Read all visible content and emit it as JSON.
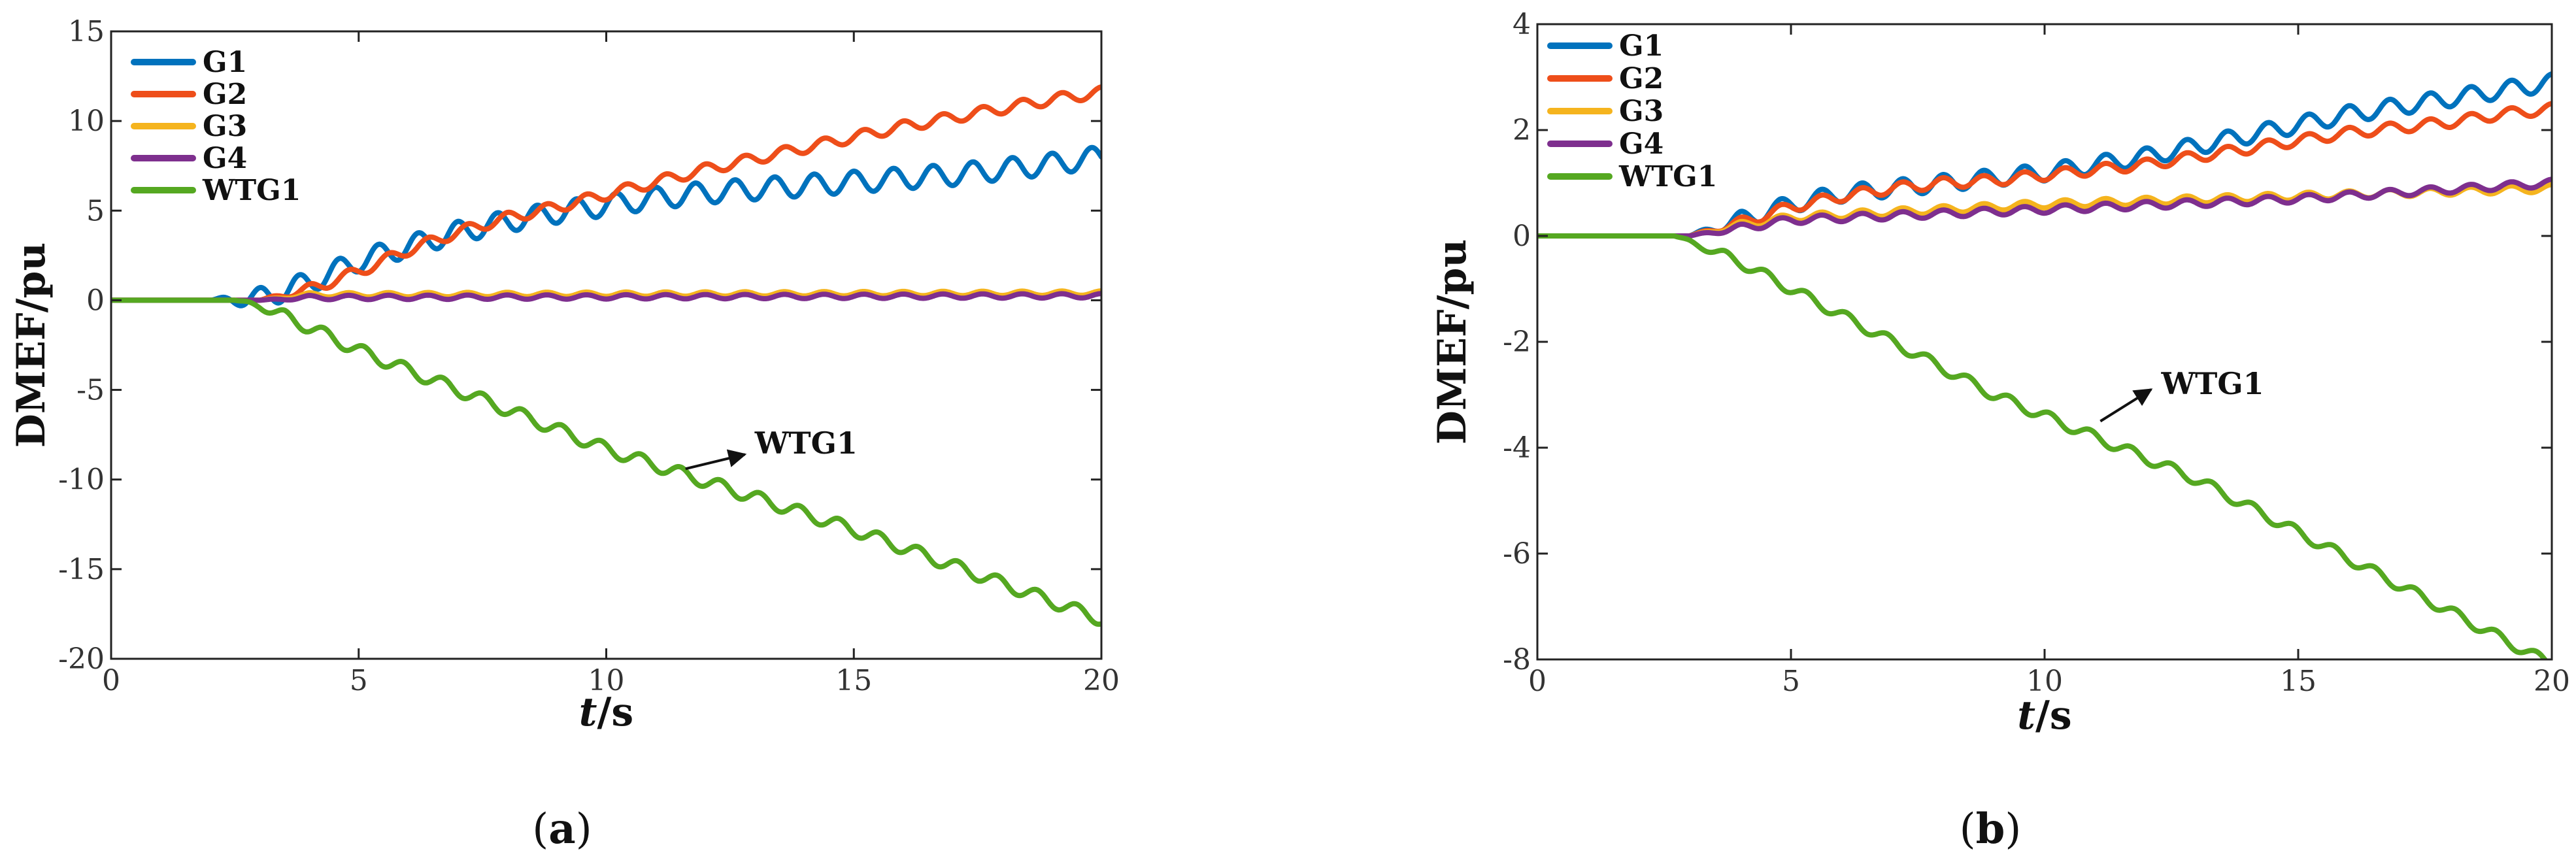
{
  "chart_data": [
    {
      "type": "line",
      "panel_label": "(a)",
      "panel_letter": "a",
      "xlabel": "t/s",
      "xlabel_italic": "t",
      "xlabel_rest": "/s",
      "ylabel": "DMEF/pu",
      "xlim": [
        0,
        20
      ],
      "ylim": [
        -20,
        15
      ],
      "xticks": [
        0,
        5,
        10,
        15,
        20
      ],
      "yticks": [
        -20,
        -15,
        -10,
        -5,
        0,
        5,
        10,
        15
      ],
      "grid": false,
      "legend": "top-left",
      "series": [
        {
          "name": "G1",
          "color": "#0072BD",
          "x": [
            0,
            2,
            3,
            4,
            5,
            6,
            7,
            8,
            9,
            10,
            11,
            12,
            13,
            14,
            15,
            16,
            17,
            18,
            19,
            20
          ],
          "y": [
            0,
            0,
            0.1,
            1.0,
            2.2,
            3.0,
            3.8,
            4.4,
            4.9,
            5.3,
            5.7,
            6.0,
            6.2,
            6.4,
            6.6,
            6.8,
            7.0,
            7.3,
            7.6,
            8.0
          ],
          "osc_amp": 0.6,
          "osc_period": 0.8
        },
        {
          "name": "G2",
          "color": "#EE4E1A",
          "x": [
            0,
            2,
            3,
            4,
            5,
            6,
            7,
            8,
            9,
            10,
            11,
            12,
            13,
            14,
            15,
            16,
            17,
            18,
            19,
            20
          ],
          "y": [
            0,
            0,
            0,
            0.6,
            1.6,
            2.8,
            3.8,
            4.6,
            5.2,
            5.9,
            6.6,
            7.3,
            7.9,
            8.5,
            9.1,
            9.7,
            10.2,
            10.7,
            11.2,
            11.6
          ],
          "osc_amp": 0.3,
          "osc_period": 0.8
        },
        {
          "name": "G3",
          "color": "#F5B41E",
          "x": [
            0,
            3,
            4,
            20
          ],
          "y": [
            0,
            0,
            0.3,
            0.4
          ],
          "osc_amp": 0.12,
          "osc_period": 0.8
        },
        {
          "name": "G4",
          "color": "#7E2F8E",
          "x": [
            0,
            3,
            4,
            20
          ],
          "y": [
            0,
            0,
            0.15,
            0.25
          ],
          "osc_amp": 0.12,
          "osc_period": 0.8
        },
        {
          "name": "WTG1",
          "color": "#55A821",
          "x": [
            0,
            2.5,
            3,
            4,
            5,
            6,
            7,
            8,
            9,
            10,
            11,
            12,
            13,
            14,
            15,
            16,
            17,
            18,
            19,
            20
          ],
          "y": [
            0,
            0,
            -0.3,
            -1.5,
            -2.8,
            -3.9,
            -5.0,
            -6.1,
            -7.2,
            -8.3,
            -9.2,
            -10.1,
            -11.0,
            -11.9,
            -12.8,
            -13.8,
            -14.8,
            -15.8,
            -16.8,
            -17.8
          ],
          "osc_amp": 0.35,
          "osc_period": 0.8
        }
      ],
      "annotations": [
        {
          "text": "WTG1",
          "x": 13,
          "y": -8,
          "arrow_from": [
            11.6,
            -9.4
          ],
          "arrow_to": [
            12.8,
            -8.6
          ]
        }
      ]
    },
    {
      "type": "line",
      "panel_label": "(b)",
      "panel_letter": "b",
      "xlabel": "t/s",
      "xlabel_italic": "t",
      "xlabel_rest": "/s",
      "ylabel": "DMEF/pu",
      "xlim": [
        0,
        20
      ],
      "ylim": [
        -8,
        4
      ],
      "xticks": [
        0,
        5,
        10,
        15,
        20
      ],
      "yticks": [
        -8,
        -6,
        -4,
        -2,
        0,
        2,
        4
      ],
      "grid": false,
      "legend": "top-left",
      "series": [
        {
          "name": "G1",
          "color": "#0072BD",
          "x": [
            0,
            3,
            4,
            5,
            6,
            7,
            8,
            9,
            10,
            11,
            12,
            13,
            14,
            15,
            16,
            17,
            18,
            19,
            20
          ],
          "y": [
            0,
            0,
            0.3,
            0.6,
            0.8,
            0.9,
            1.0,
            1.1,
            1.2,
            1.35,
            1.5,
            1.7,
            1.9,
            2.1,
            2.3,
            2.45,
            2.6,
            2.75,
            2.9
          ],
          "osc_amp": 0.16,
          "osc_period": 0.8
        },
        {
          "name": "G2",
          "color": "#EE4E1A",
          "x": [
            0,
            3,
            4,
            5,
            6,
            7,
            8,
            9,
            10,
            11,
            12,
            13,
            14,
            15,
            16,
            17,
            18,
            19,
            20
          ],
          "y": [
            0,
            0,
            0.25,
            0.55,
            0.75,
            0.9,
            1.0,
            1.05,
            1.15,
            1.25,
            1.35,
            1.5,
            1.65,
            1.8,
            1.95,
            2.05,
            2.15,
            2.3,
            2.4
          ],
          "osc_amp": 0.1,
          "osc_period": 0.8
        },
        {
          "name": "G3",
          "color": "#F5B41E",
          "x": [
            0,
            3,
            4,
            5,
            10,
            15,
            20
          ],
          "y": [
            0,
            0,
            0.2,
            0.35,
            0.6,
            0.75,
            0.9
          ],
          "osc_amp": 0.07,
          "osc_period": 0.8
        },
        {
          "name": "G4",
          "color": "#7E2F8E",
          "x": [
            0,
            3,
            4,
            5,
            10,
            15,
            20
          ],
          "y": [
            0,
            0,
            0.15,
            0.3,
            0.5,
            0.7,
            1.0
          ],
          "osc_amp": 0.07,
          "osc_period": 0.8
        },
        {
          "name": "WTG1",
          "color": "#55A821",
          "x": [
            0,
            2.7,
            3,
            4,
            5,
            6,
            7,
            8,
            9,
            10,
            11,
            12,
            13,
            14,
            15,
            16,
            17,
            18,
            19,
            20
          ],
          "y": [
            0,
            0,
            -0.1,
            -0.5,
            -1.0,
            -1.5,
            -2.0,
            -2.5,
            -3.0,
            -3.4,
            -3.8,
            -4.2,
            -4.6,
            -5.1,
            -5.6,
            -6.1,
            -6.6,
            -7.1,
            -7.6,
            -8.1
          ],
          "osc_amp": 0.1,
          "osc_period": 0.8
        }
      ],
      "annotations": [
        {
          "text": "WTG1",
          "x": 12.3,
          "y": -2.8,
          "arrow_from": [
            11.1,
            -3.5
          ],
          "arrow_to": [
            12.1,
            -2.9
          ]
        }
      ]
    }
  ]
}
